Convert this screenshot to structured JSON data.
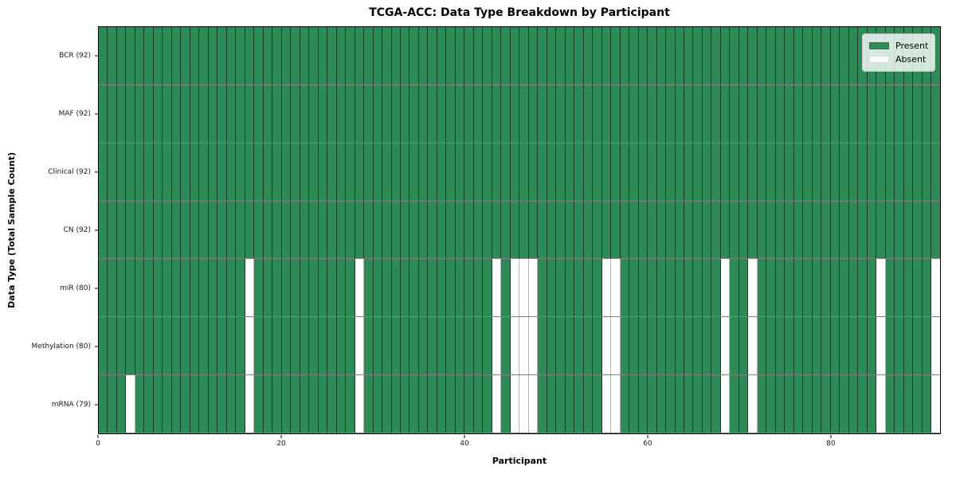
{
  "chart_data": {
    "type": "heatmap",
    "title": "TCGA-ACC: Data Type Breakdown by Participant",
    "xlabel": "Participant",
    "ylabel": "Data Type (Total Sample Count)",
    "x_ticks": [
      0,
      20,
      40,
      60,
      80
    ],
    "n_participants": 92,
    "x_range": [
      0,
      92
    ],
    "grid": true,
    "colors": {
      "present": "#2e8b57",
      "absent": "#ffffff"
    },
    "legend": {
      "position": "upper right",
      "entries": [
        {
          "label": "Present",
          "color": "#2e8b57"
        },
        {
          "label": "Absent",
          "color": "#ffffff"
        }
      ]
    },
    "rows": [
      {
        "label": "BCR (92)",
        "present_count": 92,
        "absent_participants": []
      },
      {
        "label": "MAF (92)",
        "present_count": 92,
        "absent_participants": []
      },
      {
        "label": "Clinical (92)",
        "present_count": 92,
        "absent_participants": []
      },
      {
        "label": "CN (92)",
        "present_count": 92,
        "absent_participants": []
      },
      {
        "label": "miR (80)",
        "present_count": 80,
        "absent_participants": [
          16,
          28,
          43,
          45,
          46,
          47,
          55,
          56,
          68,
          71,
          85,
          91
        ]
      },
      {
        "label": "Methylation (80)",
        "present_count": 80,
        "absent_participants": [
          16,
          28,
          43,
          45,
          46,
          47,
          55,
          56,
          68,
          71,
          85,
          91
        ]
      },
      {
        "label": "mRNA (79)",
        "present_count": 79,
        "absent_participants": [
          3,
          16,
          28,
          43,
          45,
          46,
          47,
          55,
          56,
          68,
          71,
          85,
          91
        ]
      }
    ]
  }
}
